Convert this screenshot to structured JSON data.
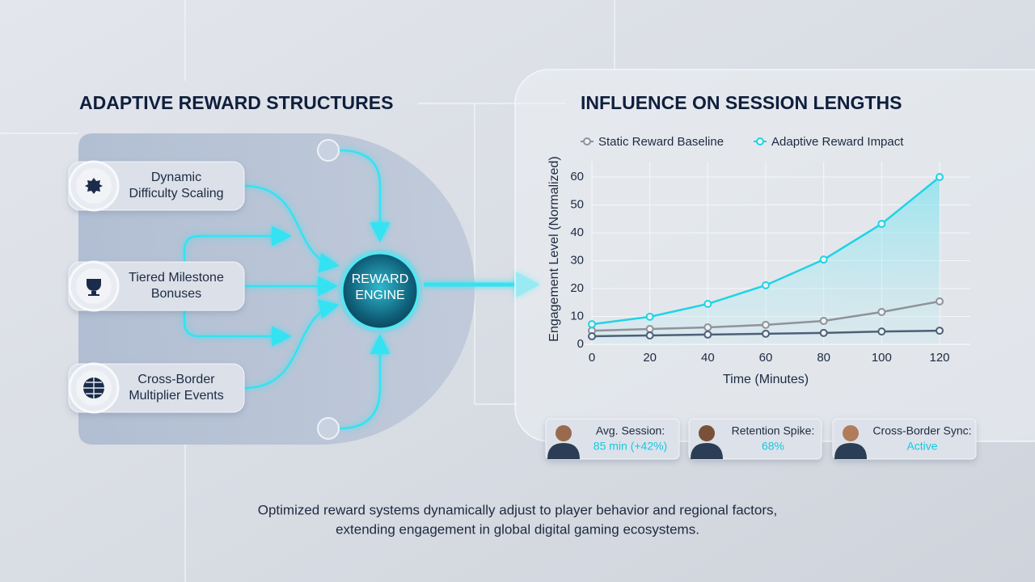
{
  "diagram": {
    "title": "ADAPTIVE REWARD STRUCTURES",
    "nodes": [
      {
        "lines": [
          "Dynamic",
          "Difficulty Scaling"
        ]
      },
      {
        "lines": [
          "Tiered Milestone",
          "Bonuses"
        ]
      },
      {
        "lines": [
          "Cross-Border",
          "Multiplier Events"
        ]
      }
    ],
    "engine": {
      "lines": [
        "REWARD",
        "ENGINE"
      ]
    }
  },
  "chart_data": {
    "type": "line",
    "title": "INFLUENCE ON SESSION LENGTHS",
    "x_label": "Time (Minutes)",
    "y_label": "Engagement Level (Normalized)",
    "x": [
      0,
      20,
      40,
      60,
      80,
      100,
      120
    ],
    "series": [
      {
        "name": "Static Reward Baseline",
        "color": "#8e9399",
        "values": [
          4.9,
          5.5,
          6.1,
          7.0,
          8.4,
          11.6,
          15.4
        ]
      },
      {
        "name": "Adaptive Reward Impact",
        "color": "#1fd3e6",
        "values": [
          7.2,
          9.9,
          14.5,
          21.2,
          30.4,
          43.2,
          60
        ]
      },
      {
        "color": "#4d5f78",
        "values": [
          2.9,
          3.2,
          3.5,
          3.8,
          4.1,
          4.6,
          4.9
        ]
      }
    ],
    "xlim": [
      0,
      120
    ],
    "ylim": [
      0,
      60
    ],
    "xticks": [
      0,
      20,
      40,
      60,
      80,
      100,
      120
    ],
    "yticks": [
      0,
      10,
      20,
      30,
      40,
      50,
      60
    ],
    "grid": true,
    "fill_area_series": 1
  },
  "stats": [
    {
      "label": "Avg. Session:",
      "value": "85 min (+42%)"
    },
    {
      "label": "Retention Spike:",
      "value": "68%"
    },
    {
      "label": "Cross-Border Sync:",
      "value": "Active"
    }
  ],
  "caption": [
    "Optimized reward systems dynamically adjust to player behavior and regional factors,",
    "extending engagement in global digital gaming ecosystems."
  ]
}
